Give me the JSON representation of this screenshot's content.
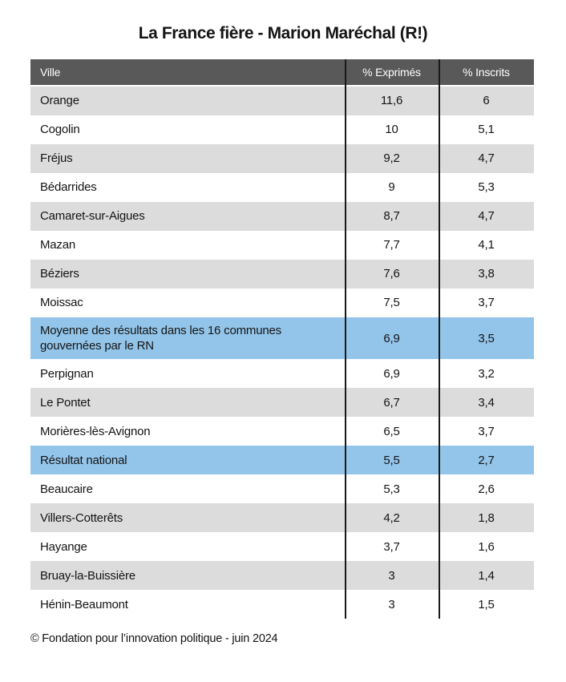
{
  "header": {
    "title": "La France fière - Marion Maréchal (R!)"
  },
  "footer": {
    "source": "© Fondation pour l’innovation politique - juin 2024"
  },
  "colors": {
    "header_bg": "#595959",
    "header_text": "#ffffff",
    "row_alt_bg": "#dcdcdc",
    "row_bg": "#ffffff",
    "highlight_bg": "#93c5ea",
    "line_color": "#1a1a1a"
  },
  "chart_data": {
    "type": "table",
    "title": "La France fière - Marion Maréchal (R!)",
    "columns": [
      "Ville",
      "% Exprimés",
      "% Inscrits"
    ],
    "rows": [
      {
        "ville": "Orange",
        "pct_exprimes": "11,6",
        "pct_inscrits": "6",
        "highlight": false
      },
      {
        "ville": "Cogolin",
        "pct_exprimes": "10",
        "pct_inscrits": "5,1",
        "highlight": false
      },
      {
        "ville": "Fréjus",
        "pct_exprimes": "9,2",
        "pct_inscrits": "4,7",
        "highlight": false
      },
      {
        "ville": "Bédarrides",
        "pct_exprimes": "9",
        "pct_inscrits": "5,3",
        "highlight": false
      },
      {
        "ville": "Camaret-sur-Aigues",
        "pct_exprimes": "8,7",
        "pct_inscrits": "4,7",
        "highlight": false
      },
      {
        "ville": "Mazan",
        "pct_exprimes": "7,7",
        "pct_inscrits": "4,1",
        "highlight": false
      },
      {
        "ville": "Béziers",
        "pct_exprimes": "7,6",
        "pct_inscrits": "3,8",
        "highlight": false
      },
      {
        "ville": "Moissac",
        "pct_exprimes": "7,5",
        "pct_inscrits": "3,7",
        "highlight": false
      },
      {
        "ville": "Moyenne des résultats dans les 16 communes gouvernées par le RN",
        "pct_exprimes": "6,9",
        "pct_inscrits": "3,5",
        "highlight": true
      },
      {
        "ville": "Perpignan",
        "pct_exprimes": "6,9",
        "pct_inscrits": "3,2",
        "highlight": false
      },
      {
        "ville": "Le Pontet",
        "pct_exprimes": "6,7",
        "pct_inscrits": "3,4",
        "highlight": false
      },
      {
        "ville": "Morières-lès-Avignon",
        "pct_exprimes": "6,5",
        "pct_inscrits": "3,7",
        "highlight": false
      },
      {
        "ville": "Résultat national",
        "pct_exprimes": "5,5",
        "pct_inscrits": "2,7",
        "highlight": true
      },
      {
        "ville": "Beaucaire",
        "pct_exprimes": "5,3",
        "pct_inscrits": "2,6",
        "highlight": false
      },
      {
        "ville": "Villers-Cotterêts",
        "pct_exprimes": "4,2",
        "pct_inscrits": "1,8",
        "highlight": false
      },
      {
        "ville": "Hayange",
        "pct_exprimes": "3,7",
        "pct_inscrits": "1,6",
        "highlight": false
      },
      {
        "ville": "Bruay-la-Buissière",
        "pct_exprimes": "3",
        "pct_inscrits": "1,4",
        "highlight": false
      },
      {
        "ville": "Hénin-Beaumont",
        "pct_exprimes": "3",
        "pct_inscrits": "1,5",
        "highlight": false
      }
    ],
    "source": "© Fondation pour l’innovation politique - juin 2024"
  }
}
